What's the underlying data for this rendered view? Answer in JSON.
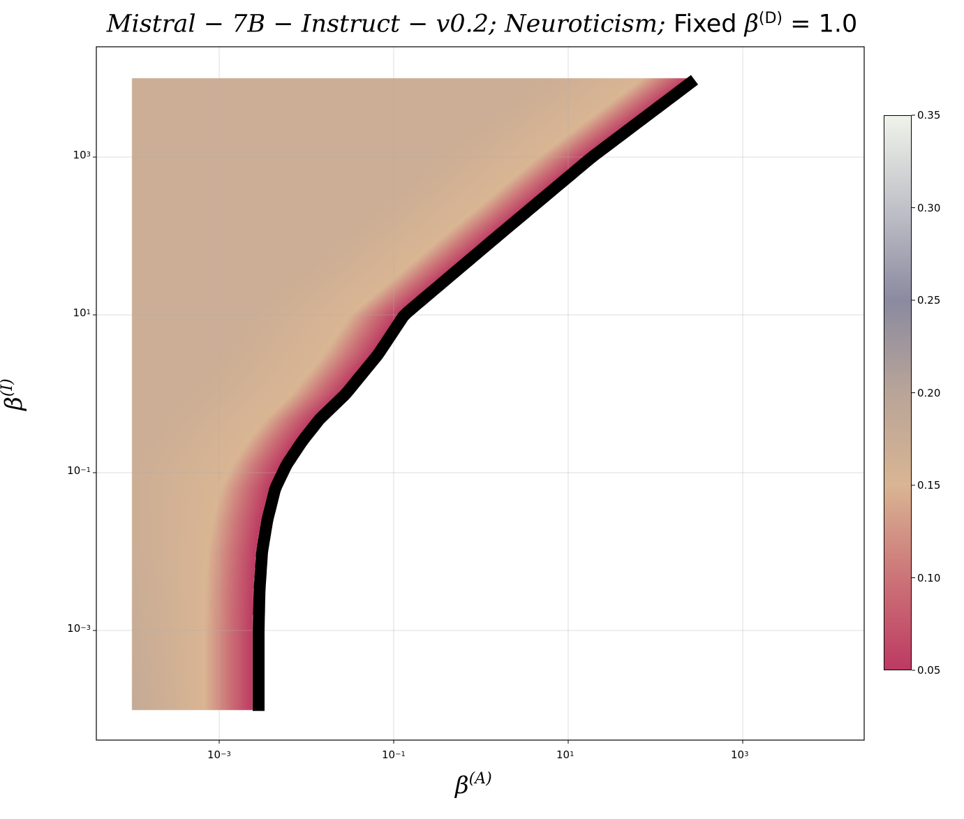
{
  "title": {
    "model": "Mistral − 7B − Instruct − v0.2;",
    "trait": "Neuroticism;",
    "fixed": "Fixed",
    "param": "β",
    "param_sup": "(D)",
    "eq": "= 1.0"
  },
  "chart_data": {
    "type": "heatmap",
    "title": "Mistral-7B-Instruct-v0.2; Neuroticism; Fixed β(D) = 1.0",
    "xlabel": "β",
    "xlabel_sup": "(A)",
    "ylabel": "β",
    "ylabel_sup": "(I)",
    "xscale": "log",
    "yscale": "log",
    "xlim_log10": [
      -4.41,
      4.39
    ],
    "ylim_log10": [
      -4.4,
      4.4
    ],
    "data_extent_log10": {
      "x_min": -4,
      "y_min": -4,
      "y_max": 4
    },
    "x_ticks": [
      {
        "base": "10",
        "exp": "−3",
        "v": -3
      },
      {
        "base": "10",
        "exp": "−1",
        "v": -1
      },
      {
        "base": "10",
        "exp": "1",
        "v": 1
      },
      {
        "base": "10",
        "exp": "3",
        "v": 3
      }
    ],
    "y_ticks": [
      {
        "base": "10",
        "exp": "3",
        "v": 3
      },
      {
        "base": "10",
        "exp": "1",
        "v": 1
      },
      {
        "base": "10",
        "exp": "−1",
        "v": -1
      },
      {
        "base": "10",
        "exp": "−3",
        "v": -3
      }
    ],
    "grid": true,
    "boundary_log10": [
      [
        -4.02,
        -2.62
      ],
      [
        -3,
        -2.62
      ],
      [
        -2.5,
        -2.61
      ],
      [
        -2,
        -2.58
      ],
      [
        -1.6,
        -2.52
      ],
      [
        -1.2,
        -2.43
      ],
      [
        -0.9,
        -2.3
      ],
      [
        -0.6,
        -2.12
      ],
      [
        -0.32,
        -1.92
      ],
      [
        0,
        -1.62
      ],
      [
        0.5,
        -1.25
      ],
      [
        1,
        -0.95
      ],
      [
        2,
        0.12
      ],
      [
        3,
        1.2
      ],
      [
        4,
        2.4
      ]
    ],
    "value_at_boundary": 0.05,
    "colorbar": {
      "range": [
        0.05,
        0.35
      ],
      "ticks": [
        "0.35",
        "0.30",
        "0.25",
        "0.20",
        "0.15",
        "0.10",
        "0.05"
      ],
      "stops": [
        [
          0.05,
          "#bd3a62"
        ],
        [
          0.1,
          "#cc7478"
        ],
        [
          0.15,
          "#d9b593"
        ],
        [
          0.2,
          "#b9a498"
        ],
        [
          0.25,
          "#8b8aa0"
        ],
        [
          0.3,
          "#c0c1c8"
        ],
        [
          0.35,
          "#eff3ea"
        ]
      ]
    }
  }
}
